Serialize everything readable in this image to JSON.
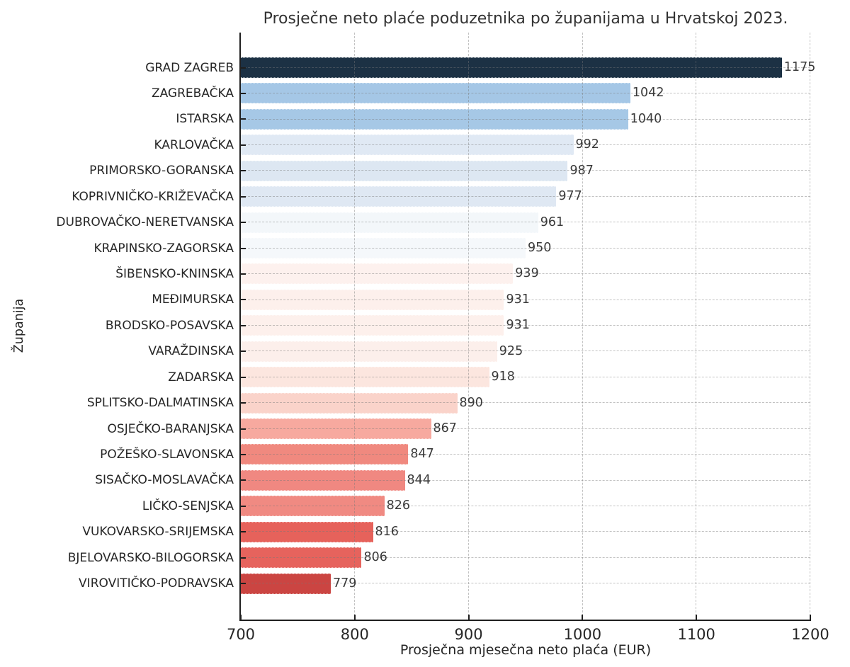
{
  "chart_data": {
    "type": "bar",
    "orientation": "horizontal",
    "title": "Prosječne neto plaće poduzetnika po županijama u Hrvatskoj 2023.",
    "xlabel": "Prosječna mjesečna neto plaća (EUR)",
    "ylabel": "Županija",
    "xlim": [
      700,
      1200
    ],
    "xticks": [
      700,
      800,
      900,
      1000,
      1100,
      1200
    ],
    "grid": "dashed gridlines on both axes, drawn over bars",
    "legend": "none",
    "bar_value_labels": true,
    "categories": [
      "GRAD ZAGREB",
      "ZAGREBAČKA",
      "ISTARSKA",
      "KARLOVAČKA",
      "PRIMORSKO-GORANSKA",
      "KOPRIVNIČKO-KRIŽEVAČKA",
      "DUBROVAČKO-NERETVANSKA",
      "KRAPINSKO-ZAGORSKA",
      "ŠIBENSKO-KNINSKA",
      "MEĐIMURSKA",
      "BRODSKO-POSAVSKA",
      "VARAŽDINSKA",
      "ZADARSKA",
      "SPLITSKO-DALMATINSKA",
      "OSJEČKO-BARANJSKA",
      "POŽEŠKO-SLAVONSKA",
      "SISAČKO-MOSLAVAČKA",
      "LIČKO-SENJSKA",
      "VUKOVARSKO-SRIJEMSKA",
      "BJELOVARSKO-BILOGORSKA",
      "VIROVITIČKO-PODRAVSKA"
    ],
    "values": [
      1175,
      1042,
      1040,
      992,
      987,
      977,
      961,
      950,
      939,
      931,
      931,
      925,
      918,
      890,
      867,
      847,
      844,
      826,
      816,
      806,
      779
    ],
    "bar_colors": [
      "#1C3144",
      "#A5C7E6",
      "#A6C8E6",
      "#E0E9F4",
      "#DDE7F2",
      "#DFE8F3",
      "#F3F7FA",
      "#F5F8FB",
      "#FDF1EE",
      "#FDF0EC",
      "#FDF0EC",
      "#FCEFEB",
      "#FCE6DF",
      "#FAD3CA",
      "#F7A99F",
      "#F0897F",
      "#F08881",
      "#F08A82",
      "#E6625B",
      "#E6635D",
      "#CB4542"
    ]
  },
  "colors": {
    "background": "#ffffff",
    "spine": "#1f1f1f",
    "grid": "rgba(120,120,120,0.45)",
    "title_text": "#333333",
    "tick_text": "#262626",
    "value_label_text": "#3a3a3a",
    "colormap": "RdBu (dark blue = highest, red = lowest)"
  }
}
